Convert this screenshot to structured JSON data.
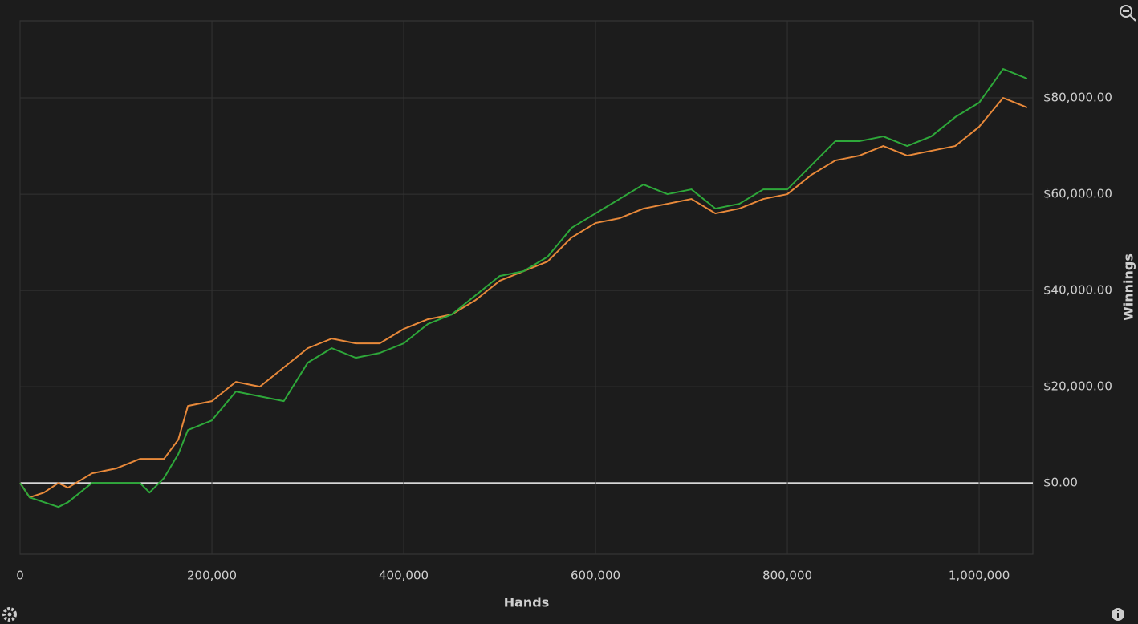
{
  "chart_data": {
    "type": "line",
    "x_label": "Hands",
    "y_label": "Winnings",
    "x": [
      0,
      10000,
      25000,
      40000,
      50000,
      75000,
      100000,
      125000,
      135000,
      150000,
      165000,
      175000,
      200000,
      225000,
      250000,
      275000,
      300000,
      325000,
      350000,
      375000,
      400000,
      425000,
      450000,
      475000,
      500000,
      525000,
      550000,
      575000,
      600000,
      625000,
      650000,
      675000,
      700000,
      725000,
      750000,
      775000,
      800000,
      825000,
      850000,
      875000,
      900000,
      925000,
      950000,
      975000,
      1000000,
      1025000,
      1050000
    ],
    "series": [
      {
        "color": "#e8893a",
        "values": [
          0,
          -3000,
          -2000,
          0,
          -1000,
          2000,
          3000,
          5000,
          5000,
          5000,
          9000,
          16000,
          17000,
          21000,
          20000,
          24000,
          28000,
          30000,
          29000,
          29000,
          32000,
          34000,
          35000,
          38000,
          42000,
          44000,
          46000,
          51000,
          54000,
          55000,
          57000,
          58000,
          59000,
          56000,
          57000,
          59000,
          60000,
          64000,
          67000,
          68000,
          70000,
          68000,
          69000,
          70000,
          74000,
          80000,
          78000
        ]
      },
      {
        "color": "#2ea83a",
        "values": [
          0,
          -3000,
          -4000,
          -5000,
          -4000,
          0,
          0,
          0,
          -2000,
          1000,
          6000,
          11000,
          13000,
          19000,
          18000,
          17000,
          25000,
          28000,
          26000,
          27000,
          29000,
          33000,
          35000,
          39000,
          43000,
          44000,
          47000,
          53000,
          56000,
          59000,
          62000,
          60000,
          61000,
          57000,
          58000,
          61000,
          61000,
          66000,
          71000,
          71000,
          72000,
          70000,
          72000,
          76000,
          79000,
          86000,
          84000
        ]
      }
    ],
    "xlim": [
      0,
      1056000
    ],
    "ylim": [
      -14800,
      96000
    ],
    "xticks": [
      0,
      {
        "value": 200000,
        "label": "200,000"
      },
      {
        "value": 400000,
        "label": "400,000"
      },
      {
        "value": 600000,
        "label": "600,000"
      },
      {
        "value": 800000,
        "label": "800,000"
      },
      {
        "value": 1000000,
        "label": "1,000,000"
      }
    ],
    "yticks": [
      {
        "value": 0,
        "label": "$0.00"
      },
      {
        "value": 20000,
        "label": "$20,000.00"
      },
      {
        "value": 40000,
        "label": "$40,000.00"
      },
      {
        "value": 60000,
        "label": "$60,000.00"
      },
      {
        "value": 80000,
        "label": "$80,000.00"
      }
    ],
    "grid": true
  }
}
